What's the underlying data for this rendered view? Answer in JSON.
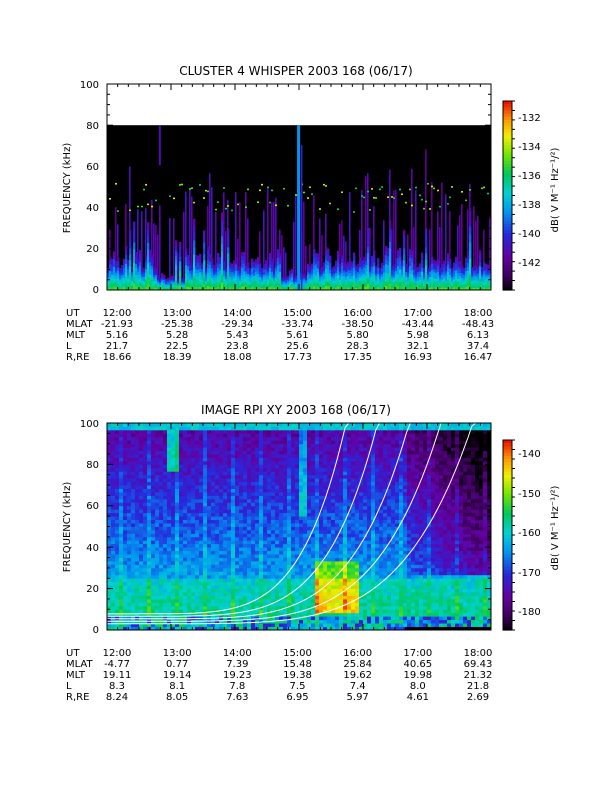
{
  "chart_data": [
    {
      "type": "heatmap",
      "title": "CLUSTER 4 WHISPER 2003 168 (06/17)",
      "ylabel": "FREQUENCY (kHz)",
      "ylim": [
        0,
        100
      ],
      "yticks": [
        "0",
        "20",
        "40",
        "60",
        "80",
        "100"
      ],
      "xlim": [
        "12:00",
        "18:00"
      ],
      "colorbar": {
        "label": "dB( V M⁻¹ Hz⁻¹/²)",
        "range": [
          -144,
          -131
        ],
        "ticks": [
          "-132",
          "-134",
          "-136",
          "-138",
          "-140",
          "-142"
        ]
      },
      "data_ceiling_khz": 80,
      "ephemeris": {
        "labels": [
          "UT",
          "MLAT",
          "MLT",
          "L",
          "R,RE"
        ],
        "columns": [
          [
            "12:00",
            "-21.93",
            "5.16",
            "21.7",
            "18.66"
          ],
          [
            "13:00",
            "-25.38",
            "5.28",
            "22.5",
            "18.39"
          ],
          [
            "14:00",
            "-29.34",
            "5.43",
            "23.8",
            "18.08"
          ],
          [
            "15:00",
            "-33.74",
            "5.61",
            "25.6",
            "17.73"
          ],
          [
            "16:00",
            "-38.50",
            "5.80",
            "28.3",
            "17.35"
          ],
          [
            "17:00",
            "-43.44",
            "5.98",
            "32.1",
            "16.93"
          ],
          [
            "18:00",
            "-48.43",
            "6.13",
            "37.4",
            "16.47"
          ]
        ]
      }
    },
    {
      "type": "heatmap",
      "title": "IMAGE RPI XY 2003 168 (06/17)",
      "ylabel": "FREQUENCY (kHz)",
      "ylim": [
        0,
        100
      ],
      "yticks": [
        "0",
        "20",
        "40",
        "60",
        "80",
        "100"
      ],
      "xlim": [
        "12:00",
        "18:00"
      ],
      "colorbar": {
        "label": "dB( V M⁻¹ Hz⁻¹/²)",
        "range": [
          -185,
          -136
        ],
        "ticks": [
          "-140",
          "-150",
          "-160",
          "-170",
          "-180"
        ]
      },
      "ephemeris": {
        "labels": [
          "UT",
          "MLAT",
          "MLT",
          "L",
          "R,RE"
        ],
        "columns": [
          [
            "12:00",
            "-4.77",
            "19.11",
            "8.3",
            "8.24"
          ],
          [
            "13:00",
            "0.77",
            "19.14",
            "8.1",
            "8.05"
          ],
          [
            "14:00",
            "7.39",
            "19.23",
            "7.8",
            "7.63"
          ],
          [
            "15:00",
            "15.48",
            "19.38",
            "7.5",
            "6.95"
          ],
          [
            "16:00",
            "25.84",
            "19.62",
            "7.4",
            "5.97"
          ],
          [
            "17:00",
            "40.65",
            "19.98",
            "8.0",
            "4.61"
          ],
          [
            "18:00",
            "69.43",
            "21.32",
            "21.8",
            "2.69"
          ]
        ]
      }
    }
  ]
}
